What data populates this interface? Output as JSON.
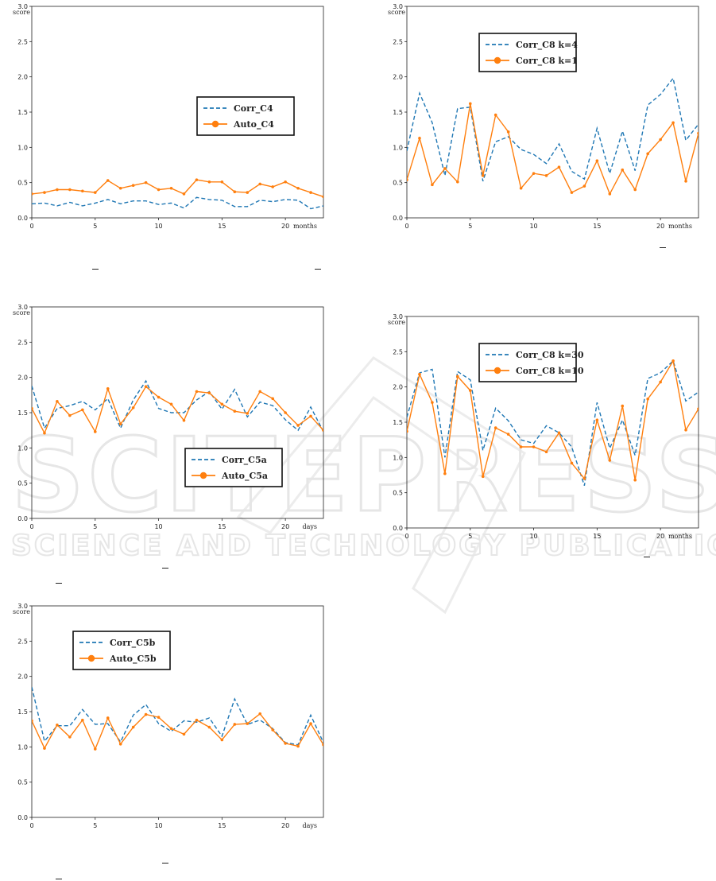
{
  "chart_data": [
    {
      "id": "c4",
      "type": "line",
      "x": [
        0,
        1,
        2,
        3,
        4,
        5,
        6,
        7,
        8,
        9,
        10,
        11,
        12,
        13,
        14,
        15,
        16,
        17,
        18,
        19,
        20,
        21,
        22,
        23
      ],
      "xlim": [
        0,
        23
      ],
      "ylim": [
        0,
        3.0
      ],
      "xticks": [
        0,
        5,
        10,
        15,
        20
      ],
      "yticks": [
        0.0,
        0.5,
        1.0,
        1.5,
        2.0,
        2.5,
        3.0
      ],
      "ylabel": "score",
      "xlabel": "months",
      "legend_position": "center-right",
      "series": [
        {
          "name": "Corr_C4",
          "style": "dashed",
          "color": "#1f77b4",
          "values": [
            0.2,
            0.21,
            0.17,
            0.22,
            0.17,
            0.21,
            0.26,
            0.2,
            0.24,
            0.24,
            0.19,
            0.21,
            0.14,
            0.29,
            0.26,
            0.25,
            0.16,
            0.16,
            0.25,
            0.23,
            0.26,
            0.25,
            0.13,
            0.17
          ]
        },
        {
          "name": "Auto_C4",
          "style": "solid-marker",
          "color": "#ff7f0e",
          "values": [
            0.34,
            0.36,
            0.4,
            0.4,
            0.38,
            0.36,
            0.53,
            0.42,
            0.46,
            0.5,
            0.4,
            0.42,
            0.34,
            0.54,
            0.51,
            0.51,
            0.37,
            0.36,
            0.48,
            0.44,
            0.51,
            0.42,
            0.36,
            0.3
          ]
        }
      ]
    },
    {
      "id": "c8a",
      "type": "line",
      "x": [
        0,
        1,
        2,
        3,
        4,
        5,
        6,
        7,
        8,
        9,
        10,
        11,
        12,
        13,
        14,
        15,
        16,
        17,
        18,
        19,
        20,
        21,
        22,
        23
      ],
      "xlim": [
        0,
        23
      ],
      "ylim": [
        0,
        3.0
      ],
      "xticks": [
        0,
        5,
        10,
        15,
        20
      ],
      "yticks": [
        0.0,
        0.5,
        1.0,
        1.5,
        2.0,
        2.5,
        3.0
      ],
      "ylabel": "score",
      "xlabel": "months",
      "legend_position": "upper-center",
      "series": [
        {
          "name": "Corr_C8 k=4",
          "style": "dashed",
          "color": "#1f77b4",
          "values": [
            0.95,
            1.77,
            1.35,
            0.6,
            1.55,
            1.57,
            0.52,
            1.08,
            1.15,
            0.97,
            0.9,
            0.77,
            1.05,
            0.66,
            0.55,
            1.27,
            0.63,
            1.23,
            0.67,
            1.6,
            1.75,
            1.98,
            1.1,
            1.33
          ]
        },
        {
          "name": "Corr_C8 k=1",
          "style": "solid-marker",
          "color": "#ff7f0e",
          "values": [
            0.54,
            1.13,
            0.47,
            0.7,
            0.51,
            1.62,
            0.6,
            1.46,
            1.22,
            0.42,
            0.63,
            0.6,
            0.72,
            0.36,
            0.45,
            0.81,
            0.34,
            0.68,
            0.4,
            0.91,
            1.11,
            1.35,
            0.52,
            1.2
          ]
        }
      ]
    },
    {
      "id": "c5a",
      "type": "line",
      "x": [
        0,
        1,
        2,
        3,
        4,
        5,
        6,
        7,
        8,
        9,
        10,
        11,
        12,
        13,
        14,
        15,
        16,
        17,
        18,
        19,
        20,
        21,
        22,
        23
      ],
      "xlim": [
        0,
        23
      ],
      "ylim": [
        0,
        3.0
      ],
      "xticks": [
        0,
        5,
        10,
        15,
        20
      ],
      "yticks": [
        0.0,
        0.5,
        1.0,
        1.5,
        2.0,
        2.5,
        3.0
      ],
      "ylabel": "score",
      "xlabel": "days",
      "legend_position": "lower-right",
      "series": [
        {
          "name": "Corr_C5a",
          "style": "dashed",
          "color": "#1f77b4",
          "values": [
            1.88,
            1.28,
            1.56,
            1.6,
            1.66,
            1.54,
            1.7,
            1.28,
            1.68,
            1.95,
            1.56,
            1.5,
            1.5,
            1.68,
            1.8,
            1.55,
            1.83,
            1.44,
            1.65,
            1.6,
            1.4,
            1.25,
            1.58,
            1.23
          ]
        },
        {
          "name": "Auto_C5a",
          "style": "solid-marker",
          "color": "#ff7f0e",
          "values": [
            1.56,
            1.21,
            1.66,
            1.46,
            1.54,
            1.23,
            1.84,
            1.34,
            1.57,
            1.87,
            1.72,
            1.62,
            1.39,
            1.8,
            1.78,
            1.62,
            1.52,
            1.49,
            1.8,
            1.7,
            1.5,
            1.32,
            1.45,
            1.25
          ]
        }
      ]
    },
    {
      "id": "c8b",
      "type": "line",
      "x": [
        0,
        1,
        2,
        3,
        4,
        5,
        6,
        7,
        8,
        9,
        10,
        11,
        12,
        13,
        14,
        15,
        16,
        17,
        18,
        19,
        20,
        21,
        22,
        23
      ],
      "xlim": [
        0,
        23
      ],
      "ylim": [
        0,
        3.0
      ],
      "xticks": [
        0,
        5,
        10,
        15,
        20
      ],
      "yticks": [
        0.0,
        0.5,
        1.0,
        1.5,
        2.0,
        2.5,
        3.0
      ],
      "ylabel": "score",
      "xlabel": "months",
      "legend_position": "upper-center",
      "series": [
        {
          "name": "Corr_C8 k=30",
          "style": "dashed",
          "color": "#1f77b4",
          "values": [
            1.57,
            2.2,
            2.25,
            1.0,
            2.22,
            2.1,
            1.1,
            1.7,
            1.52,
            1.25,
            1.2,
            1.45,
            1.35,
            1.15,
            0.6,
            1.78,
            1.13,
            1.53,
            1.03,
            2.12,
            2.2,
            2.37,
            1.8,
            1.93
          ]
        },
        {
          "name": "Corr_C8 k=10",
          "style": "solid-marker",
          "color": "#ff7f0e",
          "values": [
            1.37,
            2.18,
            1.78,
            0.77,
            2.15,
            1.95,
            0.73,
            1.42,
            1.33,
            1.15,
            1.15,
            1.08,
            1.35,
            0.92,
            0.7,
            1.53,
            0.96,
            1.73,
            0.68,
            1.83,
            2.07,
            2.37,
            1.39,
            1.69
          ]
        }
      ]
    },
    {
      "id": "c5b",
      "type": "line",
      "x": [
        0,
        1,
        2,
        3,
        4,
        5,
        6,
        7,
        8,
        9,
        10,
        11,
        12,
        13,
        14,
        15,
        16,
        17,
        18,
        19,
        20,
        21,
        22,
        23
      ],
      "xlim": [
        0,
        23
      ],
      "ylim": [
        0,
        3.0
      ],
      "xticks": [
        0,
        5,
        10,
        15,
        20
      ],
      "yticks": [
        0.0,
        0.5,
        1.0,
        1.5,
        2.0,
        2.5,
        3.0
      ],
      "ylabel": "score",
      "xlabel": "days",
      "legend_position": "upper-left",
      "series": [
        {
          "name": "Corr_C5b",
          "style": "dashed",
          "color": "#1f77b4",
          "values": [
            1.85,
            1.08,
            1.3,
            1.3,
            1.53,
            1.32,
            1.33,
            1.07,
            1.45,
            1.6,
            1.33,
            1.22,
            1.37,
            1.35,
            1.41,
            1.15,
            1.68,
            1.32,
            1.38,
            1.26,
            1.06,
            1.03,
            1.45,
            1.06
          ]
        },
        {
          "name": "Auto_C5b",
          "style": "solid-marker",
          "color": "#ff7f0e",
          "values": [
            1.37,
            0.98,
            1.31,
            1.14,
            1.38,
            0.97,
            1.41,
            1.04,
            1.28,
            1.46,
            1.42,
            1.26,
            1.18,
            1.38,
            1.28,
            1.1,
            1.32,
            1.33,
            1.47,
            1.24,
            1.05,
            1.01,
            1.33,
            1.03
          ]
        }
      ]
    }
  ],
  "watermark": {
    "title": "SCITEPRESS",
    "subtitle": "SCIENCE AND TECHNOLOGY PUBLICATIONS"
  }
}
